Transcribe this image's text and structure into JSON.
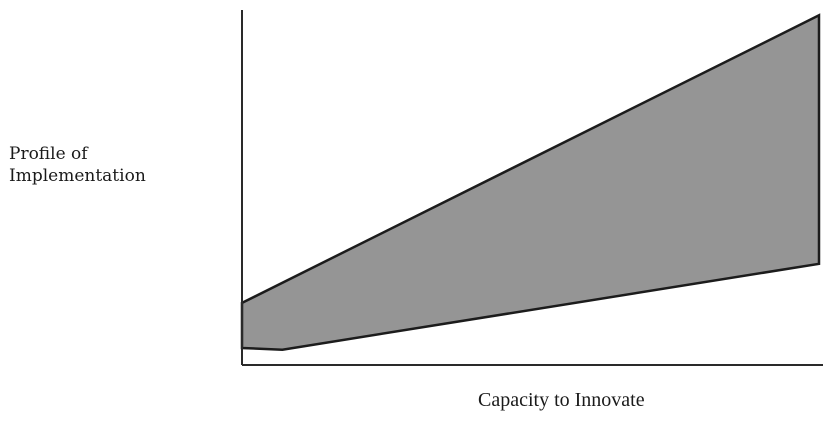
{
  "chart_data": {
    "type": "area",
    "title": "",
    "xlabel": "Capacity to Innovate",
    "ylabel_lines": [
      "Profile of",
      "Implementation"
    ],
    "x_axis": {
      "tick_labels": []
    },
    "y_axis": {
      "tick_labels": []
    },
    "grid": false,
    "legend": "none",
    "xlim": [
      0,
      100
    ],
    "ylim": [
      0,
      100
    ],
    "band": {
      "upper": [
        {
          "x": 0,
          "y": 17.5
        },
        {
          "x": 100,
          "y": 98.5
        }
      ],
      "lower": [
        {
          "x": 0,
          "y": 4.8
        },
        {
          "x": 7,
          "y": 4.3
        },
        {
          "x": 100,
          "y": 28.5
        }
      ]
    },
    "colors": {
      "fill": "#959595",
      "stroke": "#1c1c1c",
      "axis": "#2a2a2a"
    }
  }
}
